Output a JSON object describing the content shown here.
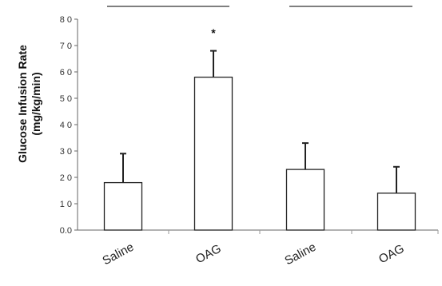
{
  "chart_data": {
    "type": "bar",
    "title": "",
    "xlabel": "",
    "ylabel": [
      "Glucose Infusion Rate",
      "(mg/kg/min)"
    ],
    "ylim": [
      0,
      80
    ],
    "yticks": [
      {
        "value": 0,
        "label": "0.0"
      },
      {
        "value": 10,
        "label": "1 0"
      },
      {
        "value": 20,
        "label": "2 0"
      },
      {
        "value": 30,
        "label": "3 0"
      },
      {
        "value": 40,
        "label": "4 0"
      },
      {
        "value": 50,
        "label": "5 0"
      },
      {
        "value": 60,
        "label": "6 0"
      },
      {
        "value": 70,
        "label": "7 0"
      },
      {
        "value": 80,
        "label": "8 0"
      }
    ],
    "grid": false,
    "legend": "none",
    "bar_color": "#ffffff",
    "edge_color": "#222222",
    "categories": [
      "Saline",
      "OAG",
      "Saline",
      "OAG"
    ],
    "values": [
      18,
      58,
      23,
      14
    ],
    "errors": [
      11,
      10,
      10,
      10
    ],
    "groups": [
      {
        "categories": [
          0,
          1
        ]
      },
      {
        "categories": [
          2,
          3
        ]
      }
    ],
    "annotations": [
      {
        "category": 1,
        "text": "*"
      }
    ]
  }
}
